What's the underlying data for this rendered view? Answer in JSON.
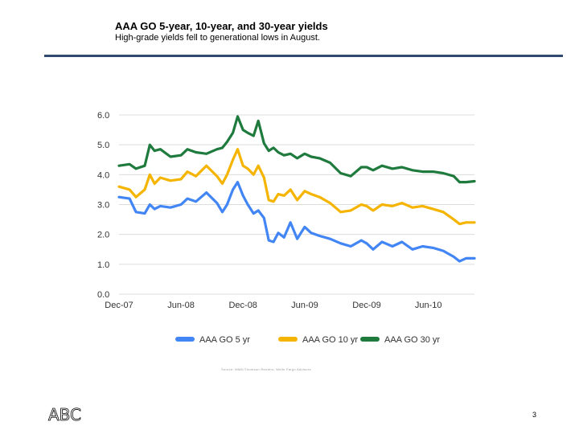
{
  "slide": {
    "title": "AAA GO 5-year, 10-year, and 30-year yields",
    "subtitle": "High-grade yields fell to generational lows in August.",
    "source_note": "Source: MMD/Thomson Reuters; Wells Fargo Advisors",
    "logo_text": "ABC",
    "page_number": "3"
  },
  "chart_data": {
    "type": "line",
    "title": "",
    "xlabel": "",
    "ylabel": "",
    "ylim": [
      0,
      6
    ],
    "xlim": [
      "2007-12-01",
      "2010-10-15"
    ],
    "yticks": [
      "0.0",
      "1.0",
      "2.0",
      "3.0",
      "4.0",
      "5.0",
      "6.0"
    ],
    "xticks": [
      {
        "label": "Dec-07",
        "date": "2007-12-01"
      },
      {
        "label": "Jun-08",
        "date": "2008-06-01"
      },
      {
        "label": "Dec-08",
        "date": "2008-12-01"
      },
      {
        "label": "Jun-09",
        "date": "2009-06-01"
      },
      {
        "label": "Dec-09",
        "date": "2009-12-01"
      },
      {
        "label": "Jun-10",
        "date": "2010-06-01"
      }
    ],
    "grid": true,
    "legend_position": "bottom",
    "series": [
      {
        "name": "AAA GO 5 yr",
        "color": "#4285f4",
        "points": [
          [
            "2007-12-01",
            3.25
          ],
          [
            "2008-01-01",
            3.2
          ],
          [
            "2008-01-20",
            2.75
          ],
          [
            "2008-02-15",
            2.7
          ],
          [
            "2008-03-01",
            3.0
          ],
          [
            "2008-03-15",
            2.85
          ],
          [
            "2008-04-01",
            2.95
          ],
          [
            "2008-05-01",
            2.9
          ],
          [
            "2008-06-01",
            3.0
          ],
          [
            "2008-06-20",
            3.2
          ],
          [
            "2008-07-15",
            3.1
          ],
          [
            "2008-08-15",
            3.4
          ],
          [
            "2008-09-15",
            3.05
          ],
          [
            "2008-10-01",
            2.75
          ],
          [
            "2008-10-15",
            3.0
          ],
          [
            "2008-11-01",
            3.5
          ],
          [
            "2008-11-15",
            3.75
          ],
          [
            "2008-12-01",
            3.3
          ],
          [
            "2008-12-15",
            3.0
          ],
          [
            "2009-01-01",
            2.7
          ],
          [
            "2009-01-15",
            2.8
          ],
          [
            "2009-02-01",
            2.55
          ],
          [
            "2009-02-15",
            1.8
          ],
          [
            "2009-03-01",
            1.75
          ],
          [
            "2009-03-15",
            2.05
          ],
          [
            "2009-04-01",
            1.9
          ],
          [
            "2009-04-20",
            2.4
          ],
          [
            "2009-05-10",
            1.85
          ],
          [
            "2009-06-01",
            2.25
          ],
          [
            "2009-06-20",
            2.05
          ],
          [
            "2009-07-15",
            1.95
          ],
          [
            "2009-08-15",
            1.85
          ],
          [
            "2009-09-15",
            1.7
          ],
          [
            "2009-10-15",
            1.6
          ],
          [
            "2009-11-15",
            1.8
          ],
          [
            "2009-12-01",
            1.7
          ],
          [
            "2009-12-20",
            1.5
          ],
          [
            "2010-01-15",
            1.75
          ],
          [
            "2010-02-15",
            1.6
          ],
          [
            "2010-03-15",
            1.75
          ],
          [
            "2010-04-15",
            1.5
          ],
          [
            "2010-05-15",
            1.6
          ],
          [
            "2010-06-15",
            1.55
          ],
          [
            "2010-07-15",
            1.45
          ],
          [
            "2010-08-15",
            1.25
          ],
          [
            "2010-09-01",
            1.1
          ],
          [
            "2010-09-20",
            1.2
          ],
          [
            "2010-10-15",
            1.2
          ]
        ]
      },
      {
        "name": "AAA GO 10 yr",
        "color": "#f4b400",
        "points": [
          [
            "2007-12-01",
            3.6
          ],
          [
            "2008-01-01",
            3.5
          ],
          [
            "2008-01-20",
            3.25
          ],
          [
            "2008-02-15",
            3.5
          ],
          [
            "2008-03-01",
            4.0
          ],
          [
            "2008-03-15",
            3.7
          ],
          [
            "2008-04-01",
            3.9
          ],
          [
            "2008-05-01",
            3.8
          ],
          [
            "2008-06-01",
            3.85
          ],
          [
            "2008-06-20",
            4.1
          ],
          [
            "2008-07-15",
            3.95
          ],
          [
            "2008-08-15",
            4.3
          ],
          [
            "2008-09-15",
            3.95
          ],
          [
            "2008-10-01",
            3.7
          ],
          [
            "2008-10-15",
            4.0
          ],
          [
            "2008-11-01",
            4.5
          ],
          [
            "2008-11-15",
            4.85
          ],
          [
            "2008-12-01",
            4.3
          ],
          [
            "2008-12-15",
            4.2
          ],
          [
            "2009-01-01",
            4.0
          ],
          [
            "2009-01-15",
            4.3
          ],
          [
            "2009-02-01",
            3.9
          ],
          [
            "2009-02-15",
            3.15
          ],
          [
            "2009-03-01",
            3.1
          ],
          [
            "2009-03-15",
            3.35
          ],
          [
            "2009-04-01",
            3.3
          ],
          [
            "2009-04-20",
            3.5
          ],
          [
            "2009-05-10",
            3.15
          ],
          [
            "2009-06-01",
            3.45
          ],
          [
            "2009-06-20",
            3.35
          ],
          [
            "2009-07-15",
            3.25
          ],
          [
            "2009-08-15",
            3.05
          ],
          [
            "2009-09-15",
            2.75
          ],
          [
            "2009-10-15",
            2.8
          ],
          [
            "2009-11-15",
            3.0
          ],
          [
            "2009-12-01",
            2.95
          ],
          [
            "2009-12-20",
            2.8
          ],
          [
            "2010-01-15",
            3.0
          ],
          [
            "2010-02-15",
            2.95
          ],
          [
            "2010-03-15",
            3.05
          ],
          [
            "2010-04-15",
            2.9
          ],
          [
            "2010-05-15",
            2.95
          ],
          [
            "2010-06-15",
            2.85
          ],
          [
            "2010-07-15",
            2.75
          ],
          [
            "2010-08-15",
            2.5
          ],
          [
            "2010-09-01",
            2.35
          ],
          [
            "2010-09-20",
            2.4
          ],
          [
            "2010-10-15",
            2.4
          ]
        ]
      },
      {
        "name": "AAA GO 30 yr",
        "color": "#1f7a3d",
        "points": [
          [
            "2007-12-01",
            4.3
          ],
          [
            "2008-01-01",
            4.35
          ],
          [
            "2008-01-20",
            4.2
          ],
          [
            "2008-02-15",
            4.3
          ],
          [
            "2008-03-01",
            5.0
          ],
          [
            "2008-03-15",
            4.8
          ],
          [
            "2008-04-01",
            4.85
          ],
          [
            "2008-05-01",
            4.6
          ],
          [
            "2008-06-01",
            4.65
          ],
          [
            "2008-06-20",
            4.85
          ],
          [
            "2008-07-15",
            4.75
          ],
          [
            "2008-08-15",
            4.7
          ],
          [
            "2008-09-15",
            4.85
          ],
          [
            "2008-10-01",
            4.9
          ],
          [
            "2008-10-15",
            5.1
          ],
          [
            "2008-11-01",
            5.4
          ],
          [
            "2008-11-15",
            5.95
          ],
          [
            "2008-12-01",
            5.5
          ],
          [
            "2008-12-15",
            5.4
          ],
          [
            "2009-01-01",
            5.3
          ],
          [
            "2009-01-15",
            5.8
          ],
          [
            "2009-02-01",
            5.05
          ],
          [
            "2009-02-15",
            4.8
          ],
          [
            "2009-03-01",
            4.9
          ],
          [
            "2009-03-15",
            4.75
          ],
          [
            "2009-04-01",
            4.65
          ],
          [
            "2009-04-20",
            4.7
          ],
          [
            "2009-05-10",
            4.55
          ],
          [
            "2009-06-01",
            4.7
          ],
          [
            "2009-06-20",
            4.6
          ],
          [
            "2009-07-15",
            4.55
          ],
          [
            "2009-08-15",
            4.4
          ],
          [
            "2009-09-15",
            4.05
          ],
          [
            "2009-10-15",
            3.95
          ],
          [
            "2009-11-15",
            4.25
          ],
          [
            "2009-12-01",
            4.25
          ],
          [
            "2009-12-20",
            4.15
          ],
          [
            "2010-01-15",
            4.3
          ],
          [
            "2010-02-15",
            4.2
          ],
          [
            "2010-03-15",
            4.25
          ],
          [
            "2010-04-15",
            4.15
          ],
          [
            "2010-05-15",
            4.1
          ],
          [
            "2010-06-15",
            4.1
          ],
          [
            "2010-07-15",
            4.05
          ],
          [
            "2010-08-15",
            3.95
          ],
          [
            "2010-09-01",
            3.75
          ],
          [
            "2010-09-20",
            3.75
          ],
          [
            "2010-10-15",
            3.78
          ]
        ]
      }
    ]
  }
}
